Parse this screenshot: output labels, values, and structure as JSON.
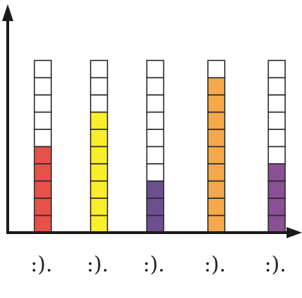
{
  "chart_data": {
    "type": "bar",
    "categories": [
      ":).",
      ":).",
      ":).",
      ":).",
      ":)."
    ],
    "values": [
      5,
      7,
      3,
      9,
      4
    ],
    "capacity": 10,
    "bar_colors": [
      "#e8504a",
      "#f8ee2c",
      "#6b4f8f",
      "#f4a94a",
      "#8a4f95"
    ],
    "empty_color": "#ffffff",
    "grid_line_color": "#2b2b2b",
    "axis_color": "#1a1a1a",
    "title": "",
    "xlabel": "",
    "ylabel": "",
    "ylim": [
      0,
      10
    ],
    "grid": false,
    "legend": "none"
  }
}
